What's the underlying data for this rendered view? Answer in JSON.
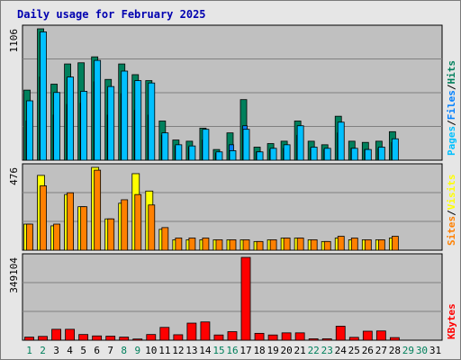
{
  "title": "Daily usage for February 2025",
  "colors": {
    "hits": "#00805c",
    "files": "#0080ff",
    "pages": "#00c0ff",
    "visits": "#ffff00",
    "sites": "#ff8000",
    "kbytes": "#ff0000",
    "weekday": "#000000",
    "weekend": "#00805c",
    "title": "#0000b0",
    "panel_bg": "#c0c0c0",
    "grid": "#808080"
  },
  "legend_top": {
    "pages": "Pages",
    "files": "Files",
    "hits": "Hits",
    "sep": "/"
  },
  "legend_mid": {
    "sites": "Sites",
    "visits": "Visits",
    "sep": "/"
  },
  "legend_bot": {
    "kbytes": "KBytes"
  },
  "chart_data": [
    {
      "type": "bar",
      "panel": "hits-files-pages",
      "x": [
        1,
        2,
        3,
        4,
        5,
        6,
        7,
        8,
        9,
        10,
        11,
        12,
        13,
        14,
        15,
        16,
        17,
        18,
        19,
        20,
        21,
        22,
        23,
        24,
        25,
        26,
        27,
        28,
        29,
        30,
        31
      ],
      "ymax_label": "1106",
      "ylim": [
        0,
        1106
      ],
      "grid": true,
      "legend": "right",
      "series": [
        {
          "name": "Hits",
          "values": [
            590,
            1106,
            640,
            810,
            820,
            870,
            680,
            810,
            720,
            670,
            330,
            170,
            160,
            270,
            90,
            230,
            510,
            110,
            140,
            160,
            330,
            160,
            130,
            370,
            160,
            150,
            160,
            240,
            0,
            0,
            0
          ]
        },
        {
          "name": "Files",
          "values": [
            330,
            700,
            380,
            470,
            480,
            660,
            380,
            560,
            420,
            380,
            210,
            120,
            110,
            170,
            60,
            130,
            290,
            70,
            90,
            100,
            210,
            100,
            90,
            230,
            100,
            90,
            100,
            150,
            0,
            0,
            0
          ]
        },
        {
          "name": "Pages",
          "values": [
            500,
            1080,
            570,
            700,
            580,
            840,
            620,
            750,
            670,
            650,
            230,
            130,
            120,
            260,
            70,
            80,
            260,
            70,
            100,
            130,
            290,
            110,
            100,
            320,
            100,
            90,
            110,
            180,
            0,
            0,
            0
          ]
        }
      ]
    },
    {
      "type": "bar",
      "panel": "visits-sites",
      "x": [
        1,
        2,
        3,
        4,
        5,
        6,
        7,
        8,
        9,
        10,
        11,
        12,
        13,
        14,
        15,
        16,
        17,
        18,
        19,
        20,
        21,
        22,
        23,
        24,
        25,
        26,
        27,
        28,
        29,
        30,
        31
      ],
      "ymax_label": "476",
      "ylim": [
        0,
        476
      ],
      "grid": true,
      "legend": "right",
      "series": [
        {
          "name": "Visits",
          "values": [
            150,
            430,
            140,
            320,
            250,
            476,
            180,
            270,
            440,
            340,
            120,
            60,
            60,
            60,
            60,
            60,
            60,
            50,
            60,
            70,
            70,
            60,
            50,
            70,
            60,
            60,
            60,
            70,
            0,
            0,
            0
          ]
        },
        {
          "name": "Sites",
          "values": [
            150,
            370,
            150,
            330,
            250,
            460,
            180,
            290,
            320,
            260,
            130,
            70,
            70,
            70,
            60,
            60,
            60,
            50,
            60,
            70,
            70,
            60,
            50,
            80,
            70,
            60,
            60,
            80,
            0,
            0,
            0
          ]
        }
      ]
    },
    {
      "type": "bar",
      "panel": "kbytes",
      "x": [
        1,
        2,
        3,
        4,
        5,
        6,
        7,
        8,
        9,
        10,
        11,
        12,
        13,
        14,
        15,
        16,
        17,
        18,
        19,
        20,
        21,
        22,
        23,
        24,
        25,
        26,
        27,
        28,
        29,
        30,
        31
      ],
      "ymax_label": "349104",
      "ylim": [
        0,
        349104
      ],
      "grid": true,
      "legend": "right",
      "series": [
        {
          "name": "KBytes",
          "values": [
            13000,
            16000,
            46000,
            46000,
            24000,
            18000,
            17000,
            13000,
            5000,
            24000,
            54000,
            23000,
            72000,
            77000,
            22000,
            36000,
            349104,
            29000,
            22000,
            31000,
            31000,
            6000,
            6000,
            59000,
            12000,
            38000,
            39000,
            11000,
            0,
            0,
            0
          ]
        }
      ]
    }
  ]
}
